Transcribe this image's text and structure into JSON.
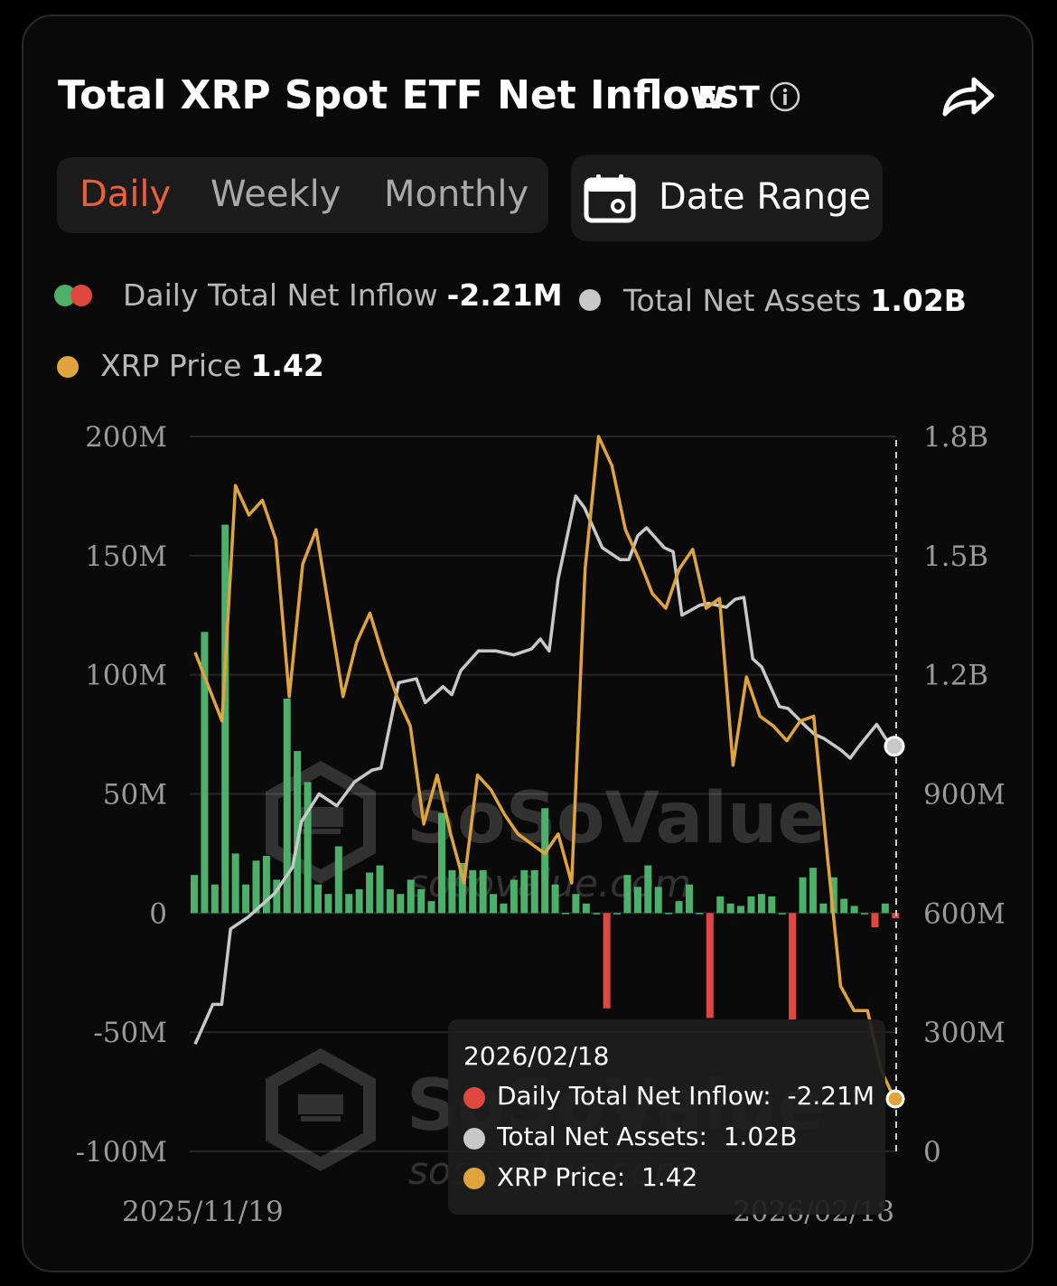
{
  "header": {
    "title": "Total XRP Spot ETF Net Inflow",
    "timezone": "EST"
  },
  "period_tabs": [
    {
      "label": "Daily",
      "active": true
    },
    {
      "label": "Weekly",
      "active": false
    },
    {
      "label": "Monthly",
      "active": false
    }
  ],
  "date_range_label": "Date Range",
  "legend": {
    "inflow": {
      "label": "Daily Total Net Inflow",
      "value": "-2.21M"
    },
    "assets": {
      "label": "Total Net Assets",
      "value": "1.02B"
    },
    "price": {
      "label": "XRP Price",
      "value": "1.42"
    }
  },
  "tooltip": {
    "date": "2026/02/18",
    "rows": [
      {
        "label": "Daily Total Net Inflow:",
        "value": "-2.21M"
      },
      {
        "label": "Total Net Assets:",
        "value": "1.02B"
      },
      {
        "label": "XRP Price:",
        "value": "1.42"
      }
    ]
  },
  "watermark": {
    "brand": "SoSoValue",
    "url": "sosovalue.com"
  },
  "colors": {
    "positive": "#4caf6a",
    "negative": "#e0473e",
    "assets": "#c8c8c8",
    "price": "#e0a43e",
    "accent": "#e8603c"
  },
  "chart_data": {
    "type": "bar+line",
    "x_start": "2025/11/19",
    "x_end": "2026/02/18",
    "x_tick_labels": [
      "2025/11/19",
      "2026/02/18"
    ],
    "y_left": {
      "min": -100,
      "max": 200,
      "unit": "M",
      "ticks": [
        "200M",
        "150M",
        "100M",
        "50M",
        "0",
        "-50M",
        "-100M"
      ]
    },
    "y_right": {
      "min": 0,
      "max": 1800,
      "unit": "M",
      "ticks": [
        "1.8B",
        "1.5B",
        "1.2B",
        "900M",
        "600M",
        "300M",
        "0"
      ]
    },
    "series": [
      {
        "name": "Daily Total Net Inflow",
        "axis": "left",
        "values": [
          16,
          118,
          12,
          163,
          25,
          12,
          22,
          24,
          14,
          90,
          68,
          55,
          12,
          8,
          28,
          8,
          10,
          17,
          20,
          10,
          8,
          14,
          10,
          5,
          42,
          18,
          21,
          18,
          18,
          8,
          4,
          14,
          18,
          18,
          44,
          12,
          0.1,
          8,
          4,
          0,
          -40,
          0,
          16,
          11,
          20,
          11,
          0.1,
          5,
          12,
          0.1,
          -44,
          7,
          4,
          3,
          7,
          8,
          7,
          0,
          -45,
          15,
          19,
          4,
          15,
          6,
          3,
          0,
          -6,
          4,
          -2.21
        ]
      },
      {
        "name": "Total Net Assets",
        "axis": "right",
        "values": [
          [
            0,
            270
          ],
          [
            2,
            370
          ],
          [
            3,
            370
          ],
          [
            4,
            560
          ],
          [
            6,
            590
          ],
          [
            8,
            630
          ],
          [
            9,
            650
          ],
          [
            11,
            715
          ],
          [
            12,
            830
          ],
          [
            14,
            900
          ],
          [
            16,
            870
          ],
          [
            18,
            930
          ],
          [
            20,
            960
          ],
          [
            21,
            965
          ],
          [
            23,
            1180
          ],
          [
            25,
            1190
          ],
          [
            26,
            1130
          ],
          [
            28,
            1170
          ],
          [
            29,
            1150
          ],
          [
            30,
            1210
          ],
          [
            32,
            1260
          ],
          [
            34,
            1260
          ],
          [
            35,
            1255
          ],
          [
            36,
            1250
          ],
          [
            38,
            1265
          ],
          [
            39,
            1290
          ],
          [
            40,
            1260
          ],
          [
            41,
            1440
          ],
          [
            43,
            1650
          ],
          [
            44,
            1620
          ],
          [
            45,
            1570
          ],
          [
            46,
            1520
          ],
          [
            48,
            1490
          ],
          [
            49,
            1490
          ],
          [
            50,
            1550
          ],
          [
            51,
            1570
          ],
          [
            53,
            1520
          ],
          [
            54,
            1510
          ],
          [
            55,
            1350
          ],
          [
            57,
            1375
          ],
          [
            58,
            1380
          ],
          [
            59,
            1375
          ],
          [
            60,
            1370
          ],
          [
            61,
            1390
          ],
          [
            62,
            1395
          ],
          [
            63,
            1240
          ],
          [
            64,
            1220
          ],
          [
            66,
            1120
          ],
          [
            67,
            1115
          ],
          [
            69,
            1070
          ],
          [
            70,
            1050
          ],
          [
            71,
            1040
          ],
          [
            72,
            1025
          ],
          [
            73,
            1010
          ],
          [
            74,
            990
          ],
          [
            75,
            1020
          ],
          [
            77,
            1075
          ],
          [
            78,
            1040
          ],
          [
            79,
            1020
          ]
        ]
      },
      {
        "name": "XRP Price",
        "axis": "right",
        "values": [
          [
            0,
            2.33
          ],
          [
            2,
            2.19
          ],
          [
            3,
            2.67
          ],
          [
            4,
            2.61
          ],
          [
            5,
            2.64
          ],
          [
            6,
            2.56
          ],
          [
            7,
            2.24
          ],
          [
            8,
            2.51
          ],
          [
            9,
            2.58
          ],
          [
            11,
            2.24
          ],
          [
            12,
            2.35
          ],
          [
            13,
            2.41
          ],
          [
            14,
            2.32
          ],
          [
            15,
            2.24
          ],
          [
            16,
            2.18
          ],
          [
            17,
            1.98
          ],
          [
            18,
            2.08
          ],
          [
            19,
            1.96
          ],
          [
            20,
            1.86
          ],
          [
            21,
            2.08
          ],
          [
            22,
            2.05
          ],
          [
            23,
            2.0
          ],
          [
            24,
            1.96
          ],
          [
            25,
            1.94
          ],
          [
            26,
            1.92
          ],
          [
            27,
            1.96
          ],
          [
            28,
            1.86
          ],
          [
            29,
            2.5
          ],
          [
            30,
            2.77
          ],
          [
            31,
            2.71
          ],
          [
            32,
            2.58
          ],
          [
            33,
            2.52
          ],
          [
            34,
            2.45
          ],
          [
            35,
            2.42
          ],
          [
            36,
            2.5
          ],
          [
            37,
            2.54
          ],
          [
            38,
            2.42
          ],
          [
            39,
            2.44
          ],
          [
            40,
            2.1
          ],
          [
            41,
            2.28
          ],
          [
            42,
            2.2
          ],
          [
            43,
            2.18
          ],
          [
            44,
            2.15
          ],
          [
            45,
            2.19
          ],
          [
            46,
            2.2
          ],
          [
            47,
            1.92
          ],
          [
            48,
            1.65
          ],
          [
            49,
            1.6
          ],
          [
            50,
            1.6
          ],
          [
            51,
            1.48
          ],
          [
            52,
            1.42
          ]
        ]
      }
    ],
    "price_axis_note": "",
    "grid": true,
    "legend_position": "top-left"
  }
}
